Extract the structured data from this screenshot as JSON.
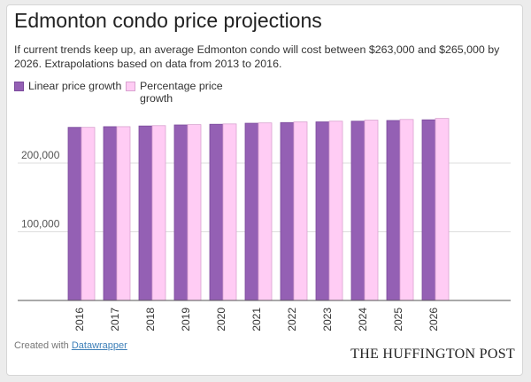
{
  "colors": {
    "linear": "#9460b4",
    "linear_stroke": "#7b4a9c",
    "percent": "#ffccf4",
    "percent_stroke": "#d9a3d0",
    "grid": "#dedede",
    "axis": "#555555"
  },
  "chart_data": {
    "type": "bar",
    "title": "Edmonton condo price projections",
    "subtitle": "If current trends keep up, an average Edmonton condo will cost between $263,000 and $265,000 by 2026. Extrapolations based on data from 2013 to 2016.",
    "xlabel": "",
    "ylabel": "",
    "ylim": [
      0,
      270000
    ],
    "yticks": [
      {
        "value": 100000,
        "label": "100,000"
      },
      {
        "value": 200000,
        "label": "200,000"
      }
    ],
    "grid": true,
    "legend_position": "top-left",
    "categories": [
      "2016",
      "2017",
      "2018",
      "2019",
      "2020",
      "2021",
      "2022",
      "2023",
      "2024",
      "2025",
      "2026"
    ],
    "series": [
      {
        "name": "Linear price growth",
        "values": [
          252000,
          253000,
          254000,
          255500,
          256500,
          258000,
          259000,
          260000,
          261000,
          262000,
          263000
        ]
      },
      {
        "name": "Percentage price growth",
        "values": [
          252000,
          253000,
          254500,
          256000,
          257000,
          258500,
          260000,
          261000,
          262500,
          263500,
          265000
        ]
      }
    ]
  },
  "footer": {
    "credit_prefix": "Created with",
    "credit_link": "Datawrapper",
    "publisher": "THE HUFFINGTON POST"
  }
}
